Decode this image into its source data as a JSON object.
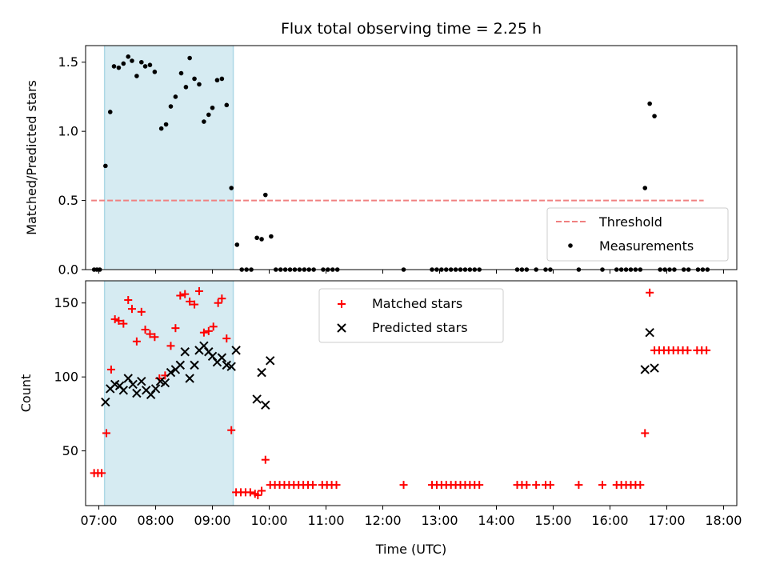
{
  "chart_data": [
    {
      "type": "scatter",
      "title": "Flux total observing time = 2.25 h",
      "xlabel": "",
      "ylabel": "Matched/Predicted stars",
      "xlim": [
        "06:46",
        "18:14"
      ],
      "ylim": [
        0,
        1.62
      ],
      "yticks": [
        0.0,
        0.5,
        1.0,
        1.5
      ],
      "ytick_labels": [
        "0.0",
        "0.5",
        "1.0",
        "1.5"
      ],
      "grid": false,
      "legend_position": "lower-right",
      "shaded_span": {
        "start": "07:06",
        "end": "09:22",
        "color": "#add8e6"
      },
      "threshold": {
        "name": "Threshold",
        "y": 0.5,
        "x_start": "06:52",
        "x_end": "17:39",
        "color": "#f08080"
      },
      "series": [
        {
          "name": "Measurements",
          "color": "#000000",
          "marker": "dot",
          "points": [
            [
              "06:55",
              0
            ],
            [
              "06:58",
              0
            ],
            [
              "07:01",
              0
            ],
            [
              "07:07",
              0.75
            ],
            [
              "07:12",
              1.14
            ],
            [
              "07:16",
              1.47
            ],
            [
              "07:21",
              1.46
            ],
            [
              "07:26",
              1.49
            ],
            [
              "07:31",
              1.54
            ],
            [
              "07:35",
              1.51
            ],
            [
              "07:40",
              1.4
            ],
            [
              "07:45",
              1.5
            ],
            [
              "07:49",
              1.47
            ],
            [
              "07:54",
              1.48
            ],
            [
              "07:59",
              1.43
            ],
            [
              "08:06",
              1.02
            ],
            [
              "08:11",
              1.05
            ],
            [
              "08:16",
              1.18
            ],
            [
              "08:21",
              1.25
            ],
            [
              "08:27",
              1.42
            ],
            [
              "08:32",
              1.32
            ],
            [
              "08:36",
              1.53
            ],
            [
              "08:41",
              1.38
            ],
            [
              "08:46",
              1.34
            ],
            [
              "08:51",
              1.07
            ],
            [
              "08:56",
              1.12
            ],
            [
              "09:00",
              1.17
            ],
            [
              "09:05",
              1.37
            ],
            [
              "09:10",
              1.38
            ],
            [
              "09:15",
              1.19
            ],
            [
              "09:20",
              0.59
            ],
            [
              "09:26",
              0.18
            ],
            [
              "09:31",
              0
            ],
            [
              "09:36",
              0
            ],
            [
              "09:41",
              0
            ],
            [
              "09:47",
              0.23
            ],
            [
              "09:52",
              0.22
            ],
            [
              "09:56",
              0.54
            ],
            [
              "10:02",
              0.24
            ],
            [
              "10:07",
              0
            ],
            [
              "10:12",
              0
            ],
            [
              "10:17",
              0
            ],
            [
              "10:22",
              0
            ],
            [
              "10:27",
              0
            ],
            [
              "10:32",
              0
            ],
            [
              "10:37",
              0
            ],
            [
              "10:42",
              0
            ],
            [
              "10:47",
              0
            ],
            [
              "10:57",
              0
            ],
            [
              "11:02",
              0
            ],
            [
              "11:07",
              0
            ],
            [
              "11:12",
              0
            ],
            [
              "12:22",
              0
            ],
            [
              "12:52",
              0
            ],
            [
              "12:57",
              0
            ],
            [
              "13:02",
              0
            ],
            [
              "13:07",
              0
            ],
            [
              "13:12",
              0
            ],
            [
              "13:17",
              0
            ],
            [
              "13:22",
              0
            ],
            [
              "13:27",
              0
            ],
            [
              "13:32",
              0
            ],
            [
              "13:37",
              0
            ],
            [
              "13:42",
              0
            ],
            [
              "14:22",
              0
            ],
            [
              "14:27",
              0
            ],
            [
              "14:32",
              0
            ],
            [
              "14:42",
              0
            ],
            [
              "14:52",
              0
            ],
            [
              "14:57",
              0
            ],
            [
              "15:27",
              0
            ],
            [
              "15:52",
              0
            ],
            [
              "16:07",
              0
            ],
            [
              "16:12",
              0
            ],
            [
              "16:17",
              0
            ],
            [
              "16:22",
              0
            ],
            [
              "16:27",
              0
            ],
            [
              "16:32",
              0
            ],
            [
              "16:37",
              0.59
            ],
            [
              "16:42",
              1.2
            ],
            [
              "16:47",
              1.11
            ],
            [
              "16:53",
              0
            ],
            [
              "16:58",
              0
            ],
            [
              "17:03",
              0
            ],
            [
              "17:08",
              0
            ],
            [
              "17:18",
              0
            ],
            [
              "17:23",
              0
            ],
            [
              "17:33",
              0
            ],
            [
              "17:38",
              0
            ],
            [
              "17:43",
              0
            ]
          ]
        }
      ]
    },
    {
      "type": "scatter",
      "title": "",
      "xlabel": "Time (UTC)",
      "ylabel": "Count",
      "xlim": [
        "06:46",
        "18:14"
      ],
      "ylim": [
        13,
        165
      ],
      "yticks": [
        50,
        100,
        150
      ],
      "ytick_labels": [
        "50",
        "100",
        "150"
      ],
      "xticks": [
        "07:00",
        "08:00",
        "09:00",
        "10:00",
        "11:00",
        "12:00",
        "13:00",
        "14:00",
        "15:00",
        "16:00",
        "17:00",
        "18:00"
      ],
      "xtick_labels": [
        "07:00",
        "08:00",
        "09:00",
        "10:00",
        "11:00",
        "12:00",
        "13:00",
        "14:00",
        "15:00",
        "16:00",
        "17:00",
        "18:00"
      ],
      "grid": false,
      "legend_position": "top-center",
      "shaded_span": {
        "start": "07:06",
        "end": "09:22",
        "color": "#add8e6"
      },
      "series": [
        {
          "name": "Matched stars",
          "color": "#ff0000",
          "marker": "plus",
          "points": [
            [
              "06:55",
              35
            ],
            [
              "06:59",
              35
            ],
            [
              "07:03",
              35
            ],
            [
              "07:08",
              62
            ],
            [
              "07:13",
              105
            ],
            [
              "07:17",
              139
            ],
            [
              "07:21",
              138
            ],
            [
              "07:26",
              136
            ],
            [
              "07:31",
              152
            ],
            [
              "07:35",
              146
            ],
            [
              "07:40",
              124
            ],
            [
              "07:45",
              144
            ],
            [
              "07:49",
              132
            ],
            [
              "07:54",
              129
            ],
            [
              "07:59",
              127
            ],
            [
              "08:04",
              99
            ],
            [
              "08:10",
              101
            ],
            [
              "08:16",
              121
            ],
            [
              "08:21",
              133
            ],
            [
              "08:26",
              155
            ],
            [
              "08:31",
              156
            ],
            [
              "08:36",
              151
            ],
            [
              "08:41",
              149
            ],
            [
              "08:46",
              158
            ],
            [
              "08:51",
              130
            ],
            [
              "08:56",
              131
            ],
            [
              "09:01",
              134
            ],
            [
              "09:06",
              150
            ],
            [
              "09:10",
              153
            ],
            [
              "09:15",
              126
            ],
            [
              "09:20",
              64
            ],
            [
              "09:25",
              22
            ],
            [
              "09:30",
              22
            ],
            [
              "09:35",
              22
            ],
            [
              "09:40",
              22
            ],
            [
              "09:45",
              21
            ],
            [
              "09:48",
              20
            ],
            [
              "09:52",
              23
            ],
            [
              "09:56",
              44
            ],
            [
              "10:01",
              27
            ],
            [
              "10:06",
              27
            ],
            [
              "10:11",
              27
            ],
            [
              "10:16",
              27
            ],
            [
              "10:21",
              27
            ],
            [
              "10:26",
              27
            ],
            [
              "10:31",
              27
            ],
            [
              "10:36",
              27
            ],
            [
              "10:41",
              27
            ],
            [
              "10:46",
              27
            ],
            [
              "10:56",
              27
            ],
            [
              "11:01",
              27
            ],
            [
              "11:06",
              27
            ],
            [
              "11:11",
              27
            ],
            [
              "12:22",
              27
            ],
            [
              "12:52",
              27
            ],
            [
              "12:57",
              27
            ],
            [
              "13:02",
              27
            ],
            [
              "13:07",
              27
            ],
            [
              "13:12",
              27
            ],
            [
              "13:17",
              27
            ],
            [
              "13:22",
              27
            ],
            [
              "13:27",
              27
            ],
            [
              "13:32",
              27
            ],
            [
              "13:37",
              27
            ],
            [
              "13:42",
              27
            ],
            [
              "14:22",
              27
            ],
            [
              "14:27",
              27
            ],
            [
              "14:32",
              27
            ],
            [
              "14:42",
              27
            ],
            [
              "14:52",
              27
            ],
            [
              "14:57",
              27
            ],
            [
              "15:27",
              27
            ],
            [
              "15:52",
              27
            ],
            [
              "16:07",
              27
            ],
            [
              "16:12",
              27
            ],
            [
              "16:17",
              27
            ],
            [
              "16:22",
              27
            ],
            [
              "16:27",
              27
            ],
            [
              "16:32",
              27
            ],
            [
              "16:37",
              62
            ],
            [
              "16:42",
              157
            ],
            [
              "16:47",
              118
            ],
            [
              "16:52",
              118
            ],
            [
              "16:57",
              118
            ],
            [
              "17:02",
              118
            ],
            [
              "17:07",
              118
            ],
            [
              "17:12",
              118
            ],
            [
              "17:17",
              118
            ],
            [
              "17:22",
              118
            ],
            [
              "17:32",
              118
            ],
            [
              "17:37",
              118
            ],
            [
              "17:42",
              118
            ]
          ]
        },
        {
          "name": "Predicted stars",
          "color": "#000000",
          "marker": "x",
          "points": [
            [
              "07:07",
              83
            ],
            [
              "07:12",
              92
            ],
            [
              "07:17",
              95
            ],
            [
              "07:22",
              94
            ],
            [
              "07:26",
              91
            ],
            [
              "07:31",
              99
            ],
            [
              "07:36",
              95
            ],
            [
              "07:40",
              89
            ],
            [
              "07:45",
              97
            ],
            [
              "07:50",
              91
            ],
            [
              "07:55",
              88
            ],
            [
              "08:00",
              92
            ],
            [
              "08:05",
              97
            ],
            [
              "08:10",
              96
            ],
            [
              "08:16",
              103
            ],
            [
              "08:21",
              105
            ],
            [
              "08:26",
              108
            ],
            [
              "08:31",
              117
            ],
            [
              "08:36",
              99
            ],
            [
              "08:41",
              108
            ],
            [
              "08:46",
              118
            ],
            [
              "08:51",
              121
            ],
            [
              "08:56",
              117
            ],
            [
              "09:00",
              114
            ],
            [
              "09:05",
              110
            ],
            [
              "09:10",
              113
            ],
            [
              "09:15",
              108
            ],
            [
              "09:20",
              107
            ],
            [
              "09:25",
              118
            ],
            [
              "09:47",
              85
            ],
            [
              "09:52",
              103
            ],
            [
              "09:56",
              81
            ],
            [
              "10:01",
              111
            ],
            [
              "16:37",
              105
            ],
            [
              "16:42",
              130
            ],
            [
              "16:47",
              106
            ]
          ]
        }
      ]
    }
  ]
}
